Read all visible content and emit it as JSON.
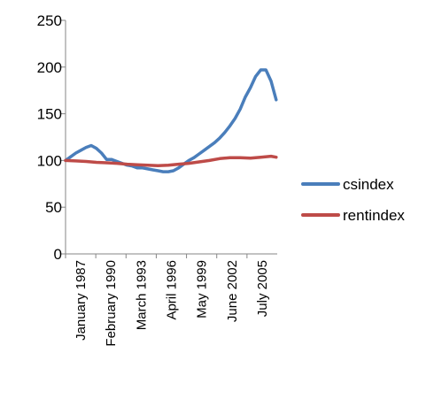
{
  "chart_data": {
    "type": "line",
    "ylim": [
      0,
      250
    ],
    "yticks": [
      0,
      50,
      100,
      150,
      200,
      250
    ],
    "xticks": [
      "January 1987",
      "February 1990",
      "March 1993",
      "April 1996",
      "May 1999",
      "June 2002",
      "July 2005"
    ],
    "xrange": [
      1987.0,
      2007.6
    ],
    "grid": false,
    "legend_position": "right",
    "series": [
      {
        "name": "csindex",
        "color": "#4a7ebb",
        "x": [
          1987.0,
          1987.5,
          1988.0,
          1988.5,
          1989.0,
          1989.5,
          1990.0,
          1990.5,
          1991.0,
          1991.5,
          1992.0,
          1992.5,
          1993.0,
          1993.5,
          1994.0,
          1994.5,
          1995.0,
          1995.5,
          1996.0,
          1996.5,
          1997.0,
          1997.5,
          1998.0,
          1998.5,
          1999.0,
          1999.5,
          2000.0,
          2000.5,
          2001.0,
          2001.5,
          2002.0,
          2002.5,
          2003.0,
          2003.5,
          2004.0,
          2004.5,
          2005.0,
          2005.5,
          2006.0,
          2006.5,
          2007.0,
          2007.5
        ],
        "y": [
          100,
          104,
          108,
          111,
          114,
          116,
          113,
          108,
          101,
          101,
          99,
          97,
          95,
          94,
          92,
          92,
          91,
          90,
          89,
          88,
          88,
          89,
          92,
          96,
          100,
          103,
          107,
          111,
          115,
          119,
          124,
          130,
          137,
          145,
          155,
          168,
          178,
          190,
          197,
          197,
          185,
          165
        ],
        "values": [
          100,
          104,
          108,
          111,
          114,
          116,
          113,
          108,
          101,
          101,
          99,
          97,
          95,
          94,
          92,
          92,
          91,
          90,
          89,
          88,
          88,
          89,
          92,
          96,
          100,
          103,
          107,
          111,
          115,
          119,
          124,
          130,
          137,
          145,
          155,
          168,
          178,
          190,
          197,
          197,
          185,
          165
        ]
      },
      {
        "name": "rentindex",
        "color": "#be4b48",
        "x": [
          1987.0,
          1988.0,
          1989.0,
          1990.0,
          1991.0,
          1992.0,
          1993.0,
          1994.0,
          1995.0,
          1996.0,
          1997.0,
          1998.0,
          1999.0,
          2000.0,
          2001.0,
          2002.0,
          2003.0,
          2004.0,
          2005.0,
          2006.0,
          2007.0,
          2007.5
        ],
        "y": [
          100,
          99.5,
          99,
          98,
          97.5,
          97,
          96,
          95.5,
          95,
          94.5,
          95,
          96,
          97,
          98.5,
          100,
          102,
          103,
          103,
          102.5,
          103.5,
          104.5,
          103.5
        ],
        "values": [
          100,
          99.5,
          99,
          98,
          97.5,
          97,
          96,
          95.5,
          95,
          94.5,
          95,
          96,
          97,
          98.5,
          100,
          102,
          103,
          103,
          102.5,
          103.5,
          104.5,
          103.5
        ]
      }
    ]
  }
}
